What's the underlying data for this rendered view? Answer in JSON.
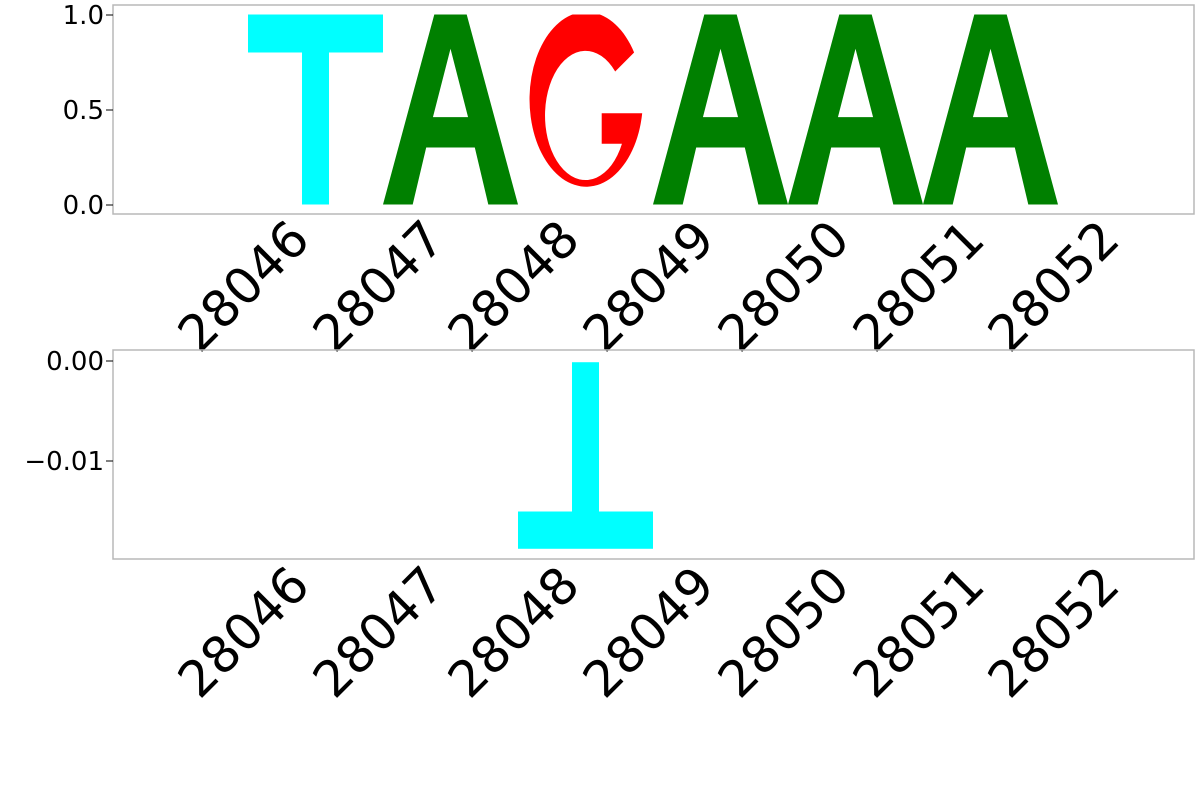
{
  "chart_data": [
    {
      "type": "bar",
      "subtype": "sequence-logo",
      "positions": [
        "28046",
        "28047",
        "28048",
        "28049",
        "28050",
        "28051",
        "28052"
      ],
      "ylim": [
        -0.05,
        1.05
      ],
      "yticks": [
        "0.0",
        "0.5",
        "1.0"
      ],
      "ytick_values": [
        0.0,
        0.5,
        1.0
      ],
      "letters": [
        {
          "position": "28046",
          "letter": "T",
          "value": 1.0
        },
        {
          "position": "28047",
          "letter": "A",
          "value": 1.0
        },
        {
          "position": "28048",
          "letter": "G",
          "value": 1.0
        },
        {
          "position": "28049",
          "letter": "A",
          "value": 1.0
        },
        {
          "position": "28050",
          "letter": "A",
          "value": 1.0
        },
        {
          "position": "28051",
          "letter": "A",
          "value": 1.0
        }
      ],
      "colors": {
        "A": "#008000",
        "C": "#0000ff",
        "G": "#ff0000",
        "T": "#00ffff"
      },
      "grid": false
    },
    {
      "type": "bar",
      "subtype": "sequence-logo",
      "positions": [
        "28046",
        "28047",
        "28048",
        "28049",
        "28050",
        "28051",
        "28052"
      ],
      "ylim": [
        -0.0195,
        0.0012
      ],
      "yticks": [
        "0.00",
        "−0.01"
      ],
      "ytick_values": [
        0.0,
        -0.01
      ],
      "letters": [
        {
          "position": "28048",
          "letter": "T",
          "value": -0.0185
        }
      ],
      "colors": {
        "A": "#008000",
        "C": "#0000ff",
        "G": "#ff0000",
        "T": "#00ffff"
      },
      "grid": false
    }
  ]
}
